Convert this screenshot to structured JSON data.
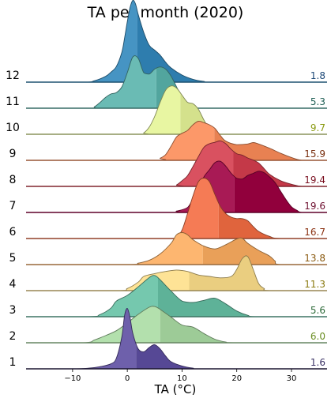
{
  "chart_data": {
    "type": "ridgeline",
    "title": "TA per month (2020)",
    "xlabel": "TA (°C)",
    "ylabel": "",
    "xlim": [
      -18.5,
      36.5
    ],
    "xticks": [
      -10,
      0,
      10,
      20,
      30
    ],
    "xtick_labels": [
      "−10",
      "0",
      "10",
      "20",
      "30"
    ],
    "grid": false,
    "legend": "none",
    "series": [
      {
        "name": "1",
        "mean": 1.6,
        "mean_label": "1.6",
        "color": "#5e4fa2",
        "label_color": "#3b3366",
        "density": [
          [
            -10,
            0
          ],
          [
            -7,
            0.01
          ],
          [
            -5,
            0.03
          ],
          [
            -3,
            0.07
          ],
          [
            -2,
            0.15
          ],
          [
            -1,
            0.45
          ],
          [
            -0.5,
            0.75
          ],
          [
            0,
            0.85
          ],
          [
            0.5,
            0.72
          ],
          [
            1,
            0.5
          ],
          [
            2,
            0.28
          ],
          [
            3,
            0.24
          ],
          [
            4,
            0.3
          ],
          [
            5,
            0.34
          ],
          [
            6,
            0.28
          ],
          [
            7,
            0.18
          ],
          [
            8,
            0.1
          ],
          [
            10,
            0.04
          ],
          [
            12,
            0.01
          ],
          [
            14,
            0
          ]
        ]
      },
      {
        "name": "2",
        "mean": 6.0,
        "mean_label": "6.0",
        "color": "#abdda4",
        "label_color": "#6b8e23",
        "density": [
          [
            -8,
            0
          ],
          [
            -6,
            0.04
          ],
          [
            -4,
            0.1
          ],
          [
            -2,
            0.17
          ],
          [
            0,
            0.28
          ],
          [
            2,
            0.4
          ],
          [
            4,
            0.5
          ],
          [
            5,
            0.51
          ],
          [
            6,
            0.47
          ],
          [
            8,
            0.36
          ],
          [
            10,
            0.25
          ],
          [
            12,
            0.22
          ],
          [
            14,
            0.13
          ],
          [
            16,
            0.05
          ],
          [
            18,
            0.01
          ],
          [
            20,
            0
          ]
        ]
      },
      {
        "name": "3",
        "mean": 5.6,
        "mean_label": "5.6",
        "color": "#66c2a5",
        "label_color": "#2e6b3a",
        "density": [
          [
            -7,
            0
          ],
          [
            -5,
            0.03
          ],
          [
            -3,
            0.12
          ],
          [
            -2,
            0.22
          ],
          [
            0,
            0.3
          ],
          [
            2,
            0.42
          ],
          [
            4,
            0.55
          ],
          [
            5,
            0.58
          ],
          [
            6,
            0.52
          ],
          [
            8,
            0.36
          ],
          [
            10,
            0.22
          ],
          [
            12,
            0.2
          ],
          [
            14,
            0.23
          ],
          [
            16,
            0.26
          ],
          [
            18,
            0.18
          ],
          [
            20,
            0.08
          ],
          [
            22,
            0.02
          ],
          [
            24,
            0
          ]
        ]
      },
      {
        "name": "4",
        "mean": 11.3,
        "mean_label": "11.3",
        "color": "#fee08b",
        "label_color": "#8a7a10",
        "density": [
          [
            -2,
            0
          ],
          [
            0,
            0.03
          ],
          [
            2,
            0.12
          ],
          [
            3,
            0.2
          ],
          [
            5,
            0.24
          ],
          [
            7,
            0.27
          ],
          [
            9,
            0.29
          ],
          [
            11,
            0.27
          ],
          [
            13,
            0.22
          ],
          [
            15,
            0.2
          ],
          [
            17,
            0.18
          ],
          [
            19,
            0.2
          ],
          [
            20,
            0.3
          ],
          [
            21,
            0.45
          ],
          [
            22,
            0.48
          ],
          [
            23,
            0.3
          ],
          [
            24,
            0.1
          ],
          [
            25,
            0.03
          ],
          [
            26,
            0
          ]
        ]
      },
      {
        "name": "5",
        "mean": 13.8,
        "mean_label": "13.8",
        "color": "#fdae61",
        "label_color": "#8a5a10",
        "density": [
          [
            0,
            0
          ],
          [
            2,
            0.02
          ],
          [
            4,
            0.06
          ],
          [
            6,
            0.15
          ],
          [
            8,
            0.3
          ],
          [
            9,
            0.42
          ],
          [
            10,
            0.45
          ],
          [
            11,
            0.42
          ],
          [
            12,
            0.35
          ],
          [
            14,
            0.26
          ],
          [
            16,
            0.22
          ],
          [
            18,
            0.28
          ],
          [
            20,
            0.36
          ],
          [
            21,
            0.37
          ],
          [
            22,
            0.3
          ],
          [
            24,
            0.2
          ],
          [
            26,
            0.12
          ],
          [
            27,
            0.05
          ],
          [
            28,
            0
          ]
        ]
      },
      {
        "name": "6",
        "mean": 16.7,
        "mean_label": "16.7",
        "color": "#f46d43",
        "label_color": "#8a3010",
        "density": [
          [
            7,
            0
          ],
          [
            9,
            0.03
          ],
          [
            10,
            0.12
          ],
          [
            11,
            0.35
          ],
          [
            12,
            0.6
          ],
          [
            13,
            0.8
          ],
          [
            14,
            0.85
          ],
          [
            15,
            0.8
          ],
          [
            16,
            0.62
          ],
          [
            17,
            0.45
          ],
          [
            18,
            0.35
          ],
          [
            19,
            0.3
          ],
          [
            20,
            0.28
          ],
          [
            21,
            0.28
          ],
          [
            22,
            0.25
          ],
          [
            23,
            0.17
          ],
          [
            24,
            0.1
          ],
          [
            26,
            0.03
          ],
          [
            28,
            0
          ]
        ]
      },
      {
        "name": "7",
        "mean": 19.6,
        "mean_label": "19.6",
        "color": "#9e0142",
        "label_color": "#6e1030",
        "density": [
          [
            7,
            0
          ],
          [
            9,
            0.02
          ],
          [
            11,
            0.07
          ],
          [
            12,
            0.2
          ],
          [
            13,
            0.33
          ],
          [
            14,
            0.5
          ],
          [
            15,
            0.6
          ],
          [
            16,
            0.7
          ],
          [
            17,
            0.72
          ],
          [
            18,
            0.65
          ],
          [
            19,
            0.55
          ],
          [
            20,
            0.48
          ],
          [
            21,
            0.47
          ],
          [
            22,
            0.52
          ],
          [
            23,
            0.55
          ],
          [
            24,
            0.58
          ],
          [
            25,
            0.56
          ],
          [
            26,
            0.5
          ],
          [
            27,
            0.42
          ],
          [
            28,
            0.3
          ],
          [
            29,
            0.18
          ],
          [
            30,
            0.08
          ],
          [
            31,
            0.03
          ],
          [
            32,
            0
          ]
        ]
      },
      {
        "name": "8",
        "mean": 19.4,
        "mean_label": "19.4",
        "color": "#d53e4f",
        "label_color": "#7a1020",
        "density": [
          [
            8,
            0
          ],
          [
            9,
            0.02
          ],
          [
            10,
            0.08
          ],
          [
            11,
            0.15
          ],
          [
            12,
            0.28
          ],
          [
            13,
            0.42
          ],
          [
            14,
            0.55
          ],
          [
            15,
            0.6
          ],
          [
            16,
            0.62
          ],
          [
            17,
            0.64
          ],
          [
            18,
            0.6
          ],
          [
            19,
            0.52
          ],
          [
            20,
            0.46
          ],
          [
            21,
            0.44
          ],
          [
            22,
            0.4
          ],
          [
            23,
            0.37
          ],
          [
            24,
            0.33
          ],
          [
            25,
            0.25
          ],
          [
            26,
            0.17
          ],
          [
            28,
            0.08
          ],
          [
            30,
            0.03
          ],
          [
            32,
            0
          ]
        ]
      },
      {
        "name": "9",
        "mean": 15.9,
        "mean_label": "15.9",
        "color": "#fc8d59",
        "label_color": "#7a3010",
        "density": [
          [
            5,
            0
          ],
          [
            6,
            0.03
          ],
          [
            7,
            0.08
          ],
          [
            8,
            0.2
          ],
          [
            9,
            0.33
          ],
          [
            10,
            0.38
          ],
          [
            11,
            0.42
          ],
          [
            12,
            0.5
          ],
          [
            13,
            0.55
          ],
          [
            14,
            0.53
          ],
          [
            15,
            0.5
          ],
          [
            16,
            0.45
          ],
          [
            17,
            0.35
          ],
          [
            18,
            0.27
          ],
          [
            20,
            0.22
          ],
          [
            22,
            0.23
          ],
          [
            23,
            0.25
          ],
          [
            24,
            0.23
          ],
          [
            26,
            0.17
          ],
          [
            28,
            0.1
          ],
          [
            30,
            0.04
          ],
          [
            32,
            0
          ]
        ]
      },
      {
        "name": "10",
        "mean": 9.7,
        "mean_label": "9.7",
        "color": "#e6f598",
        "label_color": "#8a9a10",
        "density": [
          [
            2,
            0
          ],
          [
            3,
            0.02
          ],
          [
            4,
            0.1
          ],
          [
            5,
            0.25
          ],
          [
            6,
            0.45
          ],
          [
            7,
            0.62
          ],
          [
            8,
            0.68
          ],
          [
            9,
            0.65
          ],
          [
            10,
            0.55
          ],
          [
            11,
            0.45
          ],
          [
            12,
            0.43
          ],
          [
            13,
            0.35
          ],
          [
            14,
            0.2
          ],
          [
            15,
            0.08
          ],
          [
            16,
            0.03
          ],
          [
            17,
            0
          ]
        ]
      },
      {
        "name": "11",
        "mean": 5.3,
        "mean_label": "5.3",
        "color": "#5ab4ac",
        "label_color": "#1f5f55",
        "density": [
          [
            -7,
            0
          ],
          [
            -6,
            0.02
          ],
          [
            -5,
            0.08
          ],
          [
            -4,
            0.15
          ],
          [
            -3,
            0.2
          ],
          [
            -2,
            0.22
          ],
          [
            -1,
            0.3
          ],
          [
            0,
            0.5
          ],
          [
            1,
            0.72
          ],
          [
            2,
            0.7
          ],
          [
            3,
            0.5
          ],
          [
            4,
            0.48
          ],
          [
            5,
            0.55
          ],
          [
            6,
            0.58
          ],
          [
            7,
            0.55
          ],
          [
            8,
            0.45
          ],
          [
            9,
            0.3
          ],
          [
            10,
            0.15
          ],
          [
            11,
            0.05
          ],
          [
            12,
            0.02
          ],
          [
            13,
            0
          ]
        ]
      },
      {
        "name": "12",
        "mean": 1.8,
        "mean_label": "1.8",
        "color": "#3288bd",
        "label_color": "#1f4a78",
        "density": [
          [
            -8,
            0
          ],
          [
            -6,
            0.02
          ],
          [
            -4,
            0.08
          ],
          [
            -3,
            0.14
          ],
          [
            -2,
            0.22
          ],
          [
            -1,
            0.42
          ],
          [
            -0.5,
            0.62
          ],
          [
            0,
            0.85
          ],
          [
            0.5,
            1.05
          ],
          [
            1,
            1.15
          ],
          [
            1.5,
            1.1
          ],
          [
            2,
            0.95
          ],
          [
            3,
            0.7
          ],
          [
            4,
            0.52
          ],
          [
            5,
            0.45
          ],
          [
            6,
            0.38
          ],
          [
            7,
            0.28
          ],
          [
            8,
            0.2
          ],
          [
            10,
            0.1
          ],
          [
            12,
            0.04
          ],
          [
            14,
            0.01
          ],
          [
            16,
            0
          ]
        ]
      }
    ]
  }
}
